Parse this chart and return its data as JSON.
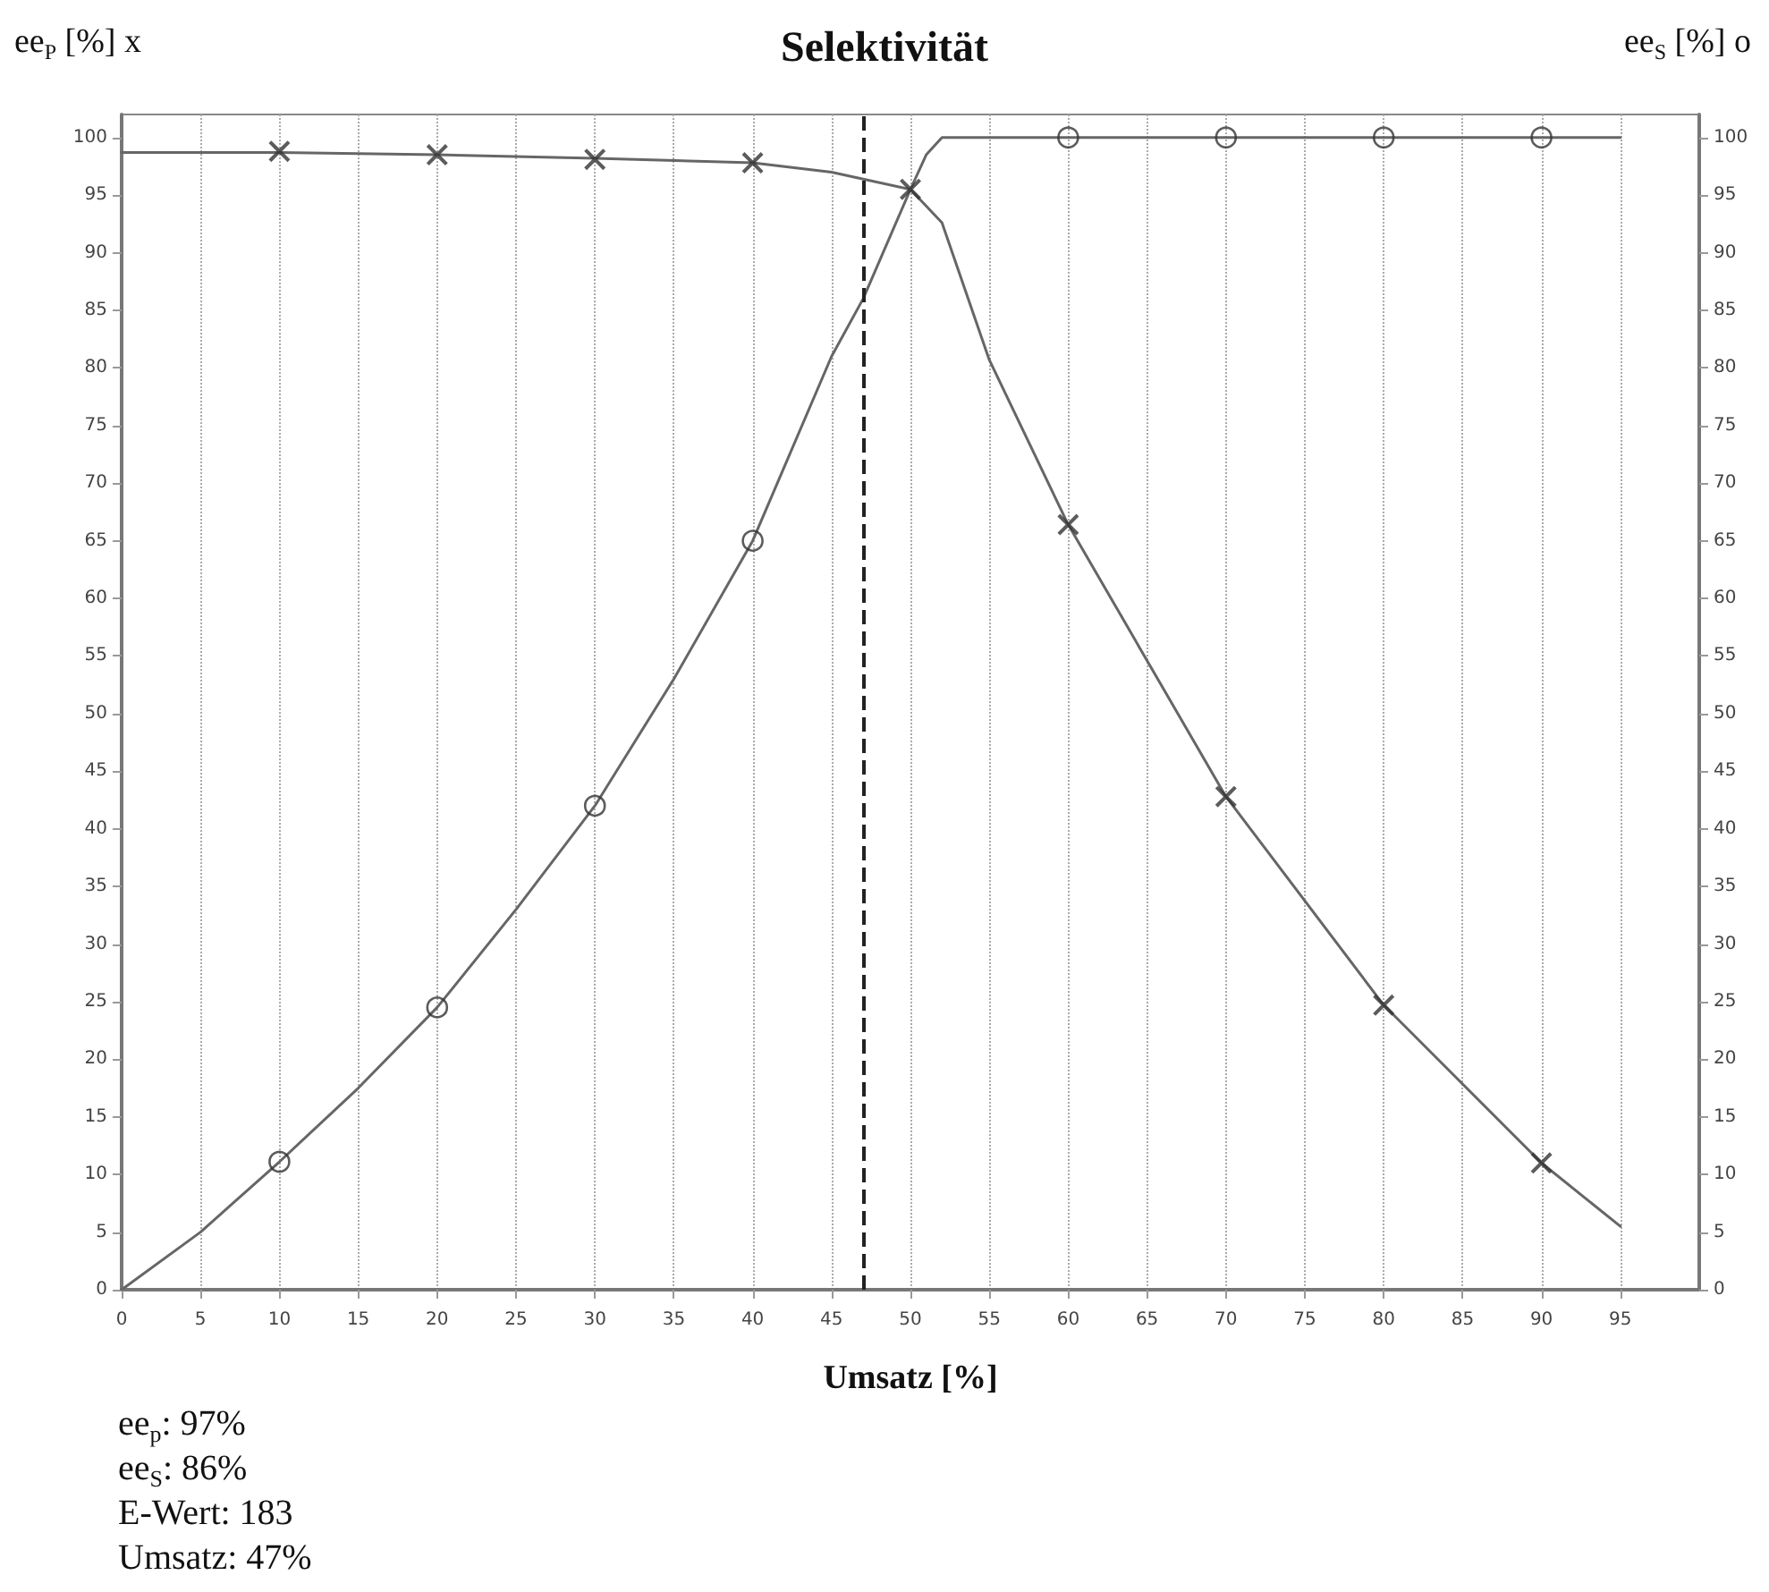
{
  "chart_data": {
    "type": "line",
    "title": "Selektivität",
    "xlabel": "Umsatz [%]",
    "ylabel": "ee$_{P}$ [%] x",
    "y2label": "ee$_{S}$ [%] o",
    "xlim": [
      0,
      100
    ],
    "xticks": [
      0,
      5,
      10,
      15,
      20,
      25,
      30,
      35,
      40,
      45,
      50,
      55,
      60,
      65,
      70,
      75,
      80,
      85,
      90,
      95
    ],
    "ylim": [
      0,
      102
    ],
    "yticks": [
      0,
      5,
      10,
      15,
      20,
      25,
      30,
      35,
      40,
      45,
      50,
      55,
      60,
      65,
      70,
      75,
      80,
      85,
      90,
      95,
      100
    ],
    "y2lim": [
      0,
      102
    ],
    "y2ticks": [
      0,
      5,
      10,
      15,
      20,
      25,
      30,
      35,
      40,
      45,
      50,
      55,
      60,
      65,
      70,
      75,
      80,
      85,
      90,
      95,
      100
    ],
    "grid": "x",
    "line_style": "solid",
    "series": [
      {
        "marker": "none",
        "color": "#666666",
        "x": [
          0,
          10,
          20,
          30,
          40,
          45,
          50,
          52,
          55,
          60,
          70,
          80,
          90,
          95
        ],
        "values": [
          98.7,
          98.7,
          98.5,
          98.2,
          97.8,
          97,
          95.5,
          92.6,
          80.7,
          66.4,
          42.8,
          24.7,
          11,
          5.5
        ]
      },
      {
        "type": "scatter",
        "marker": "cross",
        "color": "#333333",
        "x": [
          10,
          20,
          30,
          40,
          50,
          60,
          70,
          80,
          90
        ],
        "values": [
          98.8,
          98.5,
          98.1,
          97.8,
          95.5,
          66.4,
          42.8,
          24.7,
          11
        ]
      },
      {
        "marker": "none",
        "color": "#666666",
        "x": [
          0,
          5,
          10,
          15,
          20,
          25,
          30,
          35,
          40,
          45,
          47,
          50,
          51,
          52,
          60,
          70,
          80,
          90,
          95
        ],
        "values": [
          0,
          5,
          11.1,
          17.5,
          24.5,
          33,
          42,
          53,
          65,
          81,
          86,
          95.5,
          98.5,
          100,
          100,
          100,
          100,
          100,
          100
        ]
      },
      {
        "type": "scatter",
        "marker": "circle",
        "color": "#333333",
        "x": [
          10,
          20,
          30,
          40,
          60,
          70,
          80,
          90
        ],
        "values": [
          11.1,
          24.5,
          42,
          65,
          100,
          100,
          100,
          100
        ]
      }
    ],
    "ref_lines": [
      {
        "axis": "x",
        "value": 47,
        "line_style": "dashed",
        "color": "#222222"
      }
    ],
    "annotations": [
      "ee$_{p}$: 97%",
      "ee$_{S}$: 86%",
      "E-Wert: 183",
      "Umsatz: 47%"
    ]
  }
}
